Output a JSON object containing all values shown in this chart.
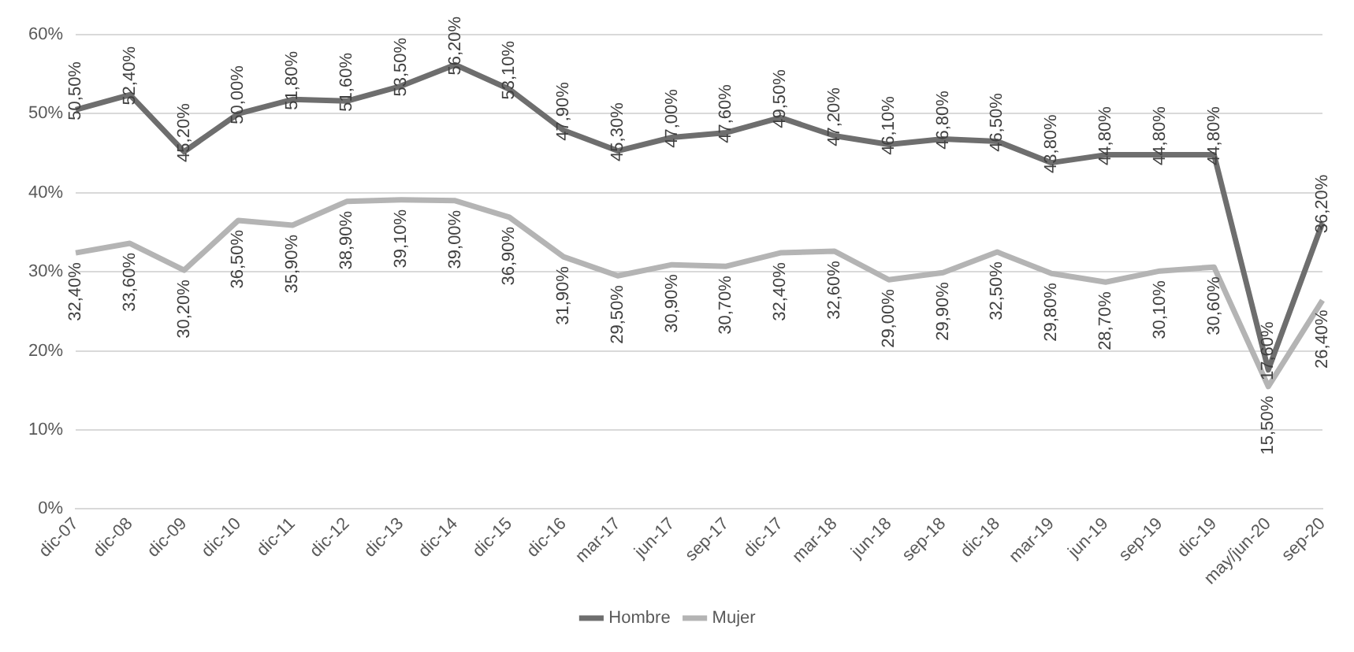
{
  "chart_data": {
    "type": "line",
    "categories": [
      "dic-07",
      "dic-08",
      "dic-09",
      "dic-10",
      "dic-11",
      "dic-12",
      "dic-13",
      "dic-14",
      "dic-15",
      "dic-16",
      "mar-17",
      "jun-17",
      "sep-17",
      "dic-17",
      "mar-18",
      "jun-18",
      "sep-18",
      "dic-18",
      "mar-19",
      "jun-19",
      "sep-19",
      "dic-19",
      "may/jun-20",
      "sep-20"
    ],
    "series": [
      {
        "name": "Hombre",
        "color": "#6e6e6e",
        "values": [
          50.5,
          52.4,
          45.2,
          50.0,
          51.8,
          51.6,
          53.5,
          56.2,
          53.1,
          47.9,
          45.3,
          47.0,
          47.6,
          49.5,
          47.2,
          46.1,
          46.8,
          46.5,
          43.8,
          44.8,
          44.8,
          44.8,
          17.6,
          36.2
        ],
        "value_labels": [
          "50,50%",
          "52,40%",
          "45,20%",
          "50,00%",
          "51,80%",
          "51,60%",
          "53,50%",
          "56,20%",
          "53,10%",
          "47,90%",
          "45,30%",
          "47,00%",
          "47,60%",
          "49,50%",
          "47,20%",
          "46,10%",
          "46,80%",
          "46,50%",
          "43,80%",
          "44,80%",
          "44,80%",
          "44,80%",
          "17,60%",
          "36,20%"
        ]
      },
      {
        "name": "Mujer",
        "color": "#b4b4b4",
        "values": [
          32.4,
          33.6,
          30.2,
          36.5,
          35.9,
          38.9,
          39.1,
          39.0,
          36.9,
          31.9,
          29.5,
          30.9,
          30.7,
          32.4,
          32.6,
          29.0,
          29.9,
          32.5,
          29.8,
          28.7,
          30.1,
          30.6,
          15.5,
          26.4
        ],
        "value_labels": [
          "32,40%",
          "33,60%",
          "30,20%",
          "36,50%",
          "35,90%",
          "38,90%",
          "39,10%",
          "39,00%",
          "36,90%",
          "31,90%",
          "29,50%",
          "30,90%",
          "30,70%",
          "32,40%",
          "32,60%",
          "29,00%",
          "29,90%",
          "32,50%",
          "29,80%",
          "28,70%",
          "30,10%",
          "30,60%",
          "15,50%",
          "26,40%"
        ]
      }
    ],
    "ylim": [
      0,
      60
    ],
    "yticks": [
      {
        "value": 0,
        "label": "0%"
      },
      {
        "value": 10,
        "label": "10%"
      },
      {
        "value": 20,
        "label": "20%"
      },
      {
        "value": 30,
        "label": "30%"
      },
      {
        "value": 40,
        "label": "40%"
      },
      {
        "value": 50,
        "label": "50%"
      },
      {
        "value": 60,
        "label": "60%"
      }
    ],
    "grid": "y",
    "legend": "bottom",
    "marker": "none",
    "line_style": "solid"
  }
}
